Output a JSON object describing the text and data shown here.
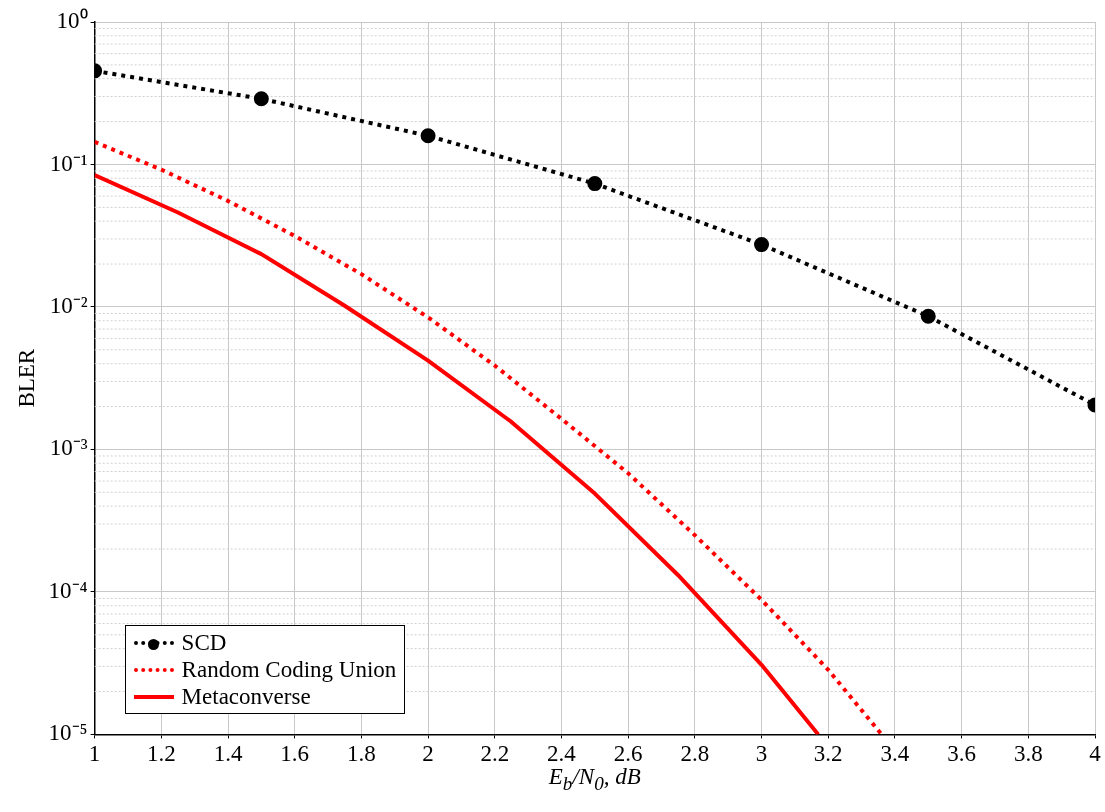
{
  "chart_data": {
    "type": "line",
    "xlabel": "E$_{b}$/N$_{0}$, dB",
    "ylabel": "BLER",
    "log": "y",
    "grid": true,
    "legend": "bottom left",
    "xlim": [
      1,
      4
    ],
    "xticks": [
      1,
      1.2,
      1.4,
      1.6,
      1.8,
      2,
      2.2,
      2.4,
      2.6,
      2.8,
      3,
      3.2,
      3.4,
      3.6,
      3.8,
      4
    ],
    "ylim": [
      1e-05,
      1
    ],
    "yticks": [
      {
        "value": 1e-05,
        "label": "10⁻⁵"
      },
      {
        "value": 0.0001,
        "label": "10⁻⁴"
      },
      {
        "value": 0.001,
        "label": "10⁻³"
      },
      {
        "value": 0.01,
        "label": "10⁻²"
      },
      {
        "value": 0.1,
        "label": "10⁻¹"
      },
      {
        "value": 1,
        "label": "10⁰"
      }
    ],
    "series": [
      {
        "name": "SCD",
        "color": "#000000",
        "marker": "circle",
        "line_style": "dotted",
        "x": [
          1,
          1.5,
          2,
          2.5,
          3,
          3.5,
          4
        ],
        "values": [
          0.454,
          0.289,
          0.159,
          0.0734,
          0.0274,
          0.0086,
          0.00205
        ]
      },
      {
        "name": "Random Coding Union",
        "color": "#ff0000",
        "marker": "none",
        "line_style": "dotted",
        "x": [
          1,
          1.2,
          1.4,
          1.6,
          1.8,
          2,
          2.2,
          2.4,
          2.6,
          2.8,
          3,
          3.2,
          3.36
        ],
        "values": [
          0.144,
          0.092,
          0.0555,
          0.0315,
          0.017,
          0.00845,
          0.00388,
          0.00164,
          0.00068,
          0.00025,
          8.8e-05,
          2.84e-05,
          1e-05
        ]
      },
      {
        "name": "Metaconverse",
        "color": "#ff0000",
        "marker": "none",
        "line_style": "solid",
        "x": [
          1,
          1.25,
          1.5,
          1.75,
          2,
          2.25,
          2.5,
          2.75,
          3,
          3.17
        ],
        "values": [
          0.0844,
          0.046,
          0.0235,
          0.0102,
          0.0042,
          0.00156,
          0.00049,
          0.000131,
          3.08e-05,
          1e-05
        ]
      }
    ]
  }
}
